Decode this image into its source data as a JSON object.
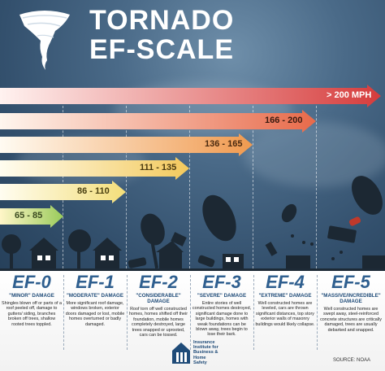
{
  "title": {
    "line1": "TORNADO",
    "line2": "EF-SCALE"
  },
  "arrows": [
    {
      "label": "65 - 85",
      "color_start": "#fff6c8",
      "color_end": "#9acb5b"
    },
    {
      "label": "86 - 110",
      "color_start": "#fff6c8",
      "color_end": "#f3de7a"
    },
    {
      "label": "111 - 135",
      "color_start": "#fff6c8",
      "color_end": "#f3c95c"
    },
    {
      "label": "136 - 165",
      "color_start": "#fff6c8",
      "color_end": "#f09a4f"
    },
    {
      "label": "166 - 200",
      "color_start": "#fff0e0",
      "color_end": "#e86a4a"
    },
    {
      "label": "> 200 MPH",
      "color_start": "#fff0ee",
      "color_end": "#d63c3c"
    }
  ],
  "levels": [
    {
      "ef": "EF-0",
      "damage": "\"MINOR\" DAMAGE",
      "desc": "Shingles blown off or parts of a roof peeled off, damage to gutters/ siding, branches broken off trees, shallow rooted trees toppled."
    },
    {
      "ef": "EF-1",
      "damage": "\"MODERATE\" DAMAGE",
      "desc": "More significant roof damage, windows broken, exterior doors damaged or lost, mobile homes overturned or badly damaged."
    },
    {
      "ef": "EF-2",
      "damage": "\"CONSIDERABLE\" DAMAGE",
      "desc": "Roof torn off well constructed homes, homes shifted off their foundation, mobile homes completely destroyed, large trees snapped or uprooted, cars can be tossed."
    },
    {
      "ef": "EF-3",
      "damage": "\"SEVERE\" DAMAGE",
      "desc": "Entire stories of well constructed homes destroyed, significant damage done to large buildings, homes with weak foundations can be blown away, trees begin to lose their bark."
    },
    {
      "ef": "EF-4",
      "damage": "\"EXTREME\" DAMAGE",
      "desc": "Well constructed homes are leveled, cars are thrown significant distances, top story exterior walls of masonry buildings would likely collapse."
    },
    {
      "ef": "EF-5",
      "damage": "\"MASSIVE/INCREDIBLE\" DAMAGE",
      "desc": "Well constructed homes are swept away, steel-reinforced concrete structures are critically damaged, trees are usually debarked and snapped."
    }
  ],
  "logo": {
    "line1": "Insurance",
    "line2": "Institute for",
    "line3": "Business &",
    "line4": "Home",
    "line5": "Safety"
  },
  "source": "SOURCE: NOAA"
}
